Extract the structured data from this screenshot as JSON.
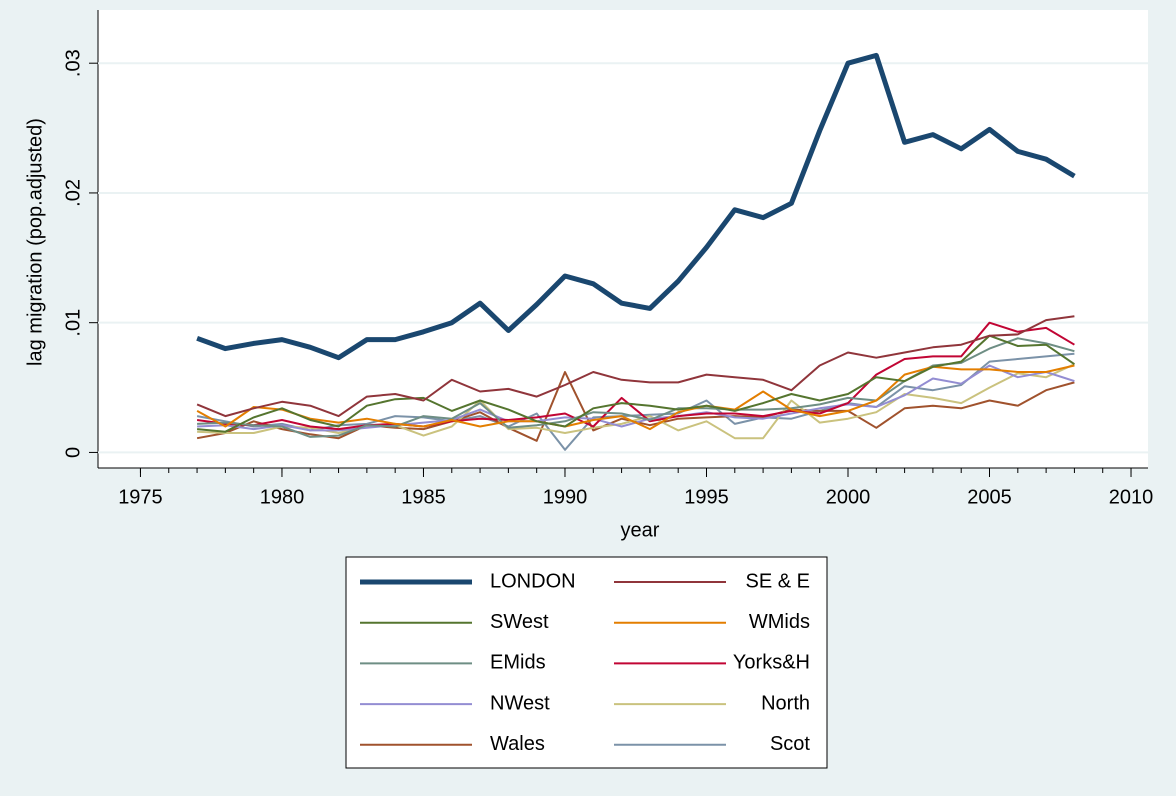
{
  "chart_data": {
    "type": "line",
    "xlabel": "year",
    "ylabel": "lag migration (pop.adjusted)",
    "x": [
      1977,
      1978,
      1979,
      1980,
      1981,
      1982,
      1983,
      1984,
      1985,
      1986,
      1987,
      1988,
      1989,
      1990,
      1991,
      1992,
      1993,
      1994,
      1995,
      1996,
      1997,
      1998,
      1999,
      2000,
      2001,
      2002,
      2003,
      2004,
      2005,
      2006,
      2007,
      2008
    ],
    "xlim": [
      1973.5,
      2010.6
    ],
    "xticks": [
      1975,
      1980,
      1985,
      1990,
      1995,
      2000,
      2005,
      2010
    ],
    "ylim": [
      -0.0012,
      0.0341
    ],
    "yticks": [
      0,
      {
        "value": 0.01,
        "label": ".01"
      },
      {
        "value": 0.02,
        "label": ".02"
      },
      {
        "value": 0.03,
        "label": ".03"
      }
    ],
    "grid": true,
    "series": [
      {
        "name": "LONDON",
        "color": "#1a476f",
        "values": [
          0.0088,
          0.008,
          0.0084,
          0.0087,
          0.0081,
          0.0073,
          0.0087,
          0.0087,
          0.0093,
          0.01,
          0.0115,
          0.0094,
          0.0114,
          0.0136,
          0.013,
          0.0115,
          0.0111,
          0.0132,
          0.0158,
          0.0187,
          0.0181,
          0.0192,
          0.0248,
          0.03,
          0.0306,
          0.0239,
          0.0245,
          0.0234,
          0.0249,
          0.0232,
          0.0226,
          0.0213
        ]
      },
      {
        "name": "SE & E",
        "color": "#90353b",
        "values": [
          0.0037,
          0.0028,
          0.0034,
          0.0039,
          0.0036,
          0.0028,
          0.0043,
          0.0045,
          0.004,
          0.0056,
          0.0047,
          0.0049,
          0.0043,
          0.0052,
          0.0062,
          0.0056,
          0.0054,
          0.0054,
          0.006,
          0.0058,
          0.0056,
          0.0048,
          0.0067,
          0.0077,
          0.0073,
          0.0077,
          0.0081,
          0.0083,
          0.009,
          0.0091,
          0.0102,
          0.0105
        ]
      },
      {
        "name": "SWest",
        "color": "#55752f",
        "values": [
          0.0018,
          0.0016,
          0.0027,
          0.0034,
          0.0025,
          0.002,
          0.0036,
          0.0041,
          0.0042,
          0.0032,
          0.004,
          0.0033,
          0.0024,
          0.002,
          0.0034,
          0.0038,
          0.0036,
          0.0033,
          0.0036,
          0.0032,
          0.0038,
          0.0045,
          0.004,
          0.0045,
          0.0058,
          0.0055,
          0.0066,
          0.007,
          0.009,
          0.0082,
          0.0083,
          0.0068
        ]
      },
      {
        "name": "WMids",
        "color": "#e37e00",
        "values": [
          0.0032,
          0.002,
          0.0035,
          0.0033,
          0.0026,
          0.0023,
          0.0026,
          0.0022,
          0.002,
          0.0025,
          0.002,
          0.0024,
          0.0024,
          0.002,
          0.0025,
          0.0028,
          0.0018,
          0.0031,
          0.0036,
          0.0033,
          0.0047,
          0.0033,
          0.0028,
          0.0032,
          0.004,
          0.006,
          0.0066,
          0.0064,
          0.0064,
          0.0062,
          0.0062,
          0.0067
        ]
      },
      {
        "name": "EMids",
        "color": "#6e8e84",
        "values": [
          0.0022,
          0.0023,
          0.0021,
          0.002,
          0.0012,
          0.0013,
          0.0021,
          0.002,
          0.0028,
          0.0026,
          0.0038,
          0.0019,
          0.0021,
          0.0024,
          0.0031,
          0.003,
          0.0025,
          0.0034,
          0.0034,
          0.0033,
          0.0033,
          0.0034,
          0.0037,
          0.0042,
          0.004,
          0.0055,
          0.0067,
          0.0069,
          0.008,
          0.0088,
          0.0084,
          0.0078
        ]
      },
      {
        "name": "Yorks&H",
        "color": "#c10534",
        "values": [
          0.0025,
          0.0022,
          0.0021,
          0.0025,
          0.002,
          0.0018,
          0.0021,
          0.0022,
          0.002,
          0.0024,
          0.0026,
          0.0025,
          0.0027,
          0.003,
          0.002,
          0.0042,
          0.0024,
          0.0028,
          0.003,
          0.003,
          0.0028,
          0.0032,
          0.003,
          0.0038,
          0.006,
          0.0072,
          0.0074,
          0.0074,
          0.01,
          0.0093,
          0.0096,
          0.0083
        ]
      },
      {
        "name": "NWest",
        "color": "#938dd2",
        "values": [
          0.002,
          0.0021,
          0.0018,
          0.0021,
          0.0017,
          0.0017,
          0.0019,
          0.0021,
          0.0023,
          0.0025,
          0.0033,
          0.0024,
          0.0024,
          0.0027,
          0.0026,
          0.002,
          0.0026,
          0.0028,
          0.0031,
          0.0027,
          0.0026,
          0.003,
          0.0034,
          0.0037,
          0.0035,
          0.0044,
          0.0057,
          0.0053,
          0.0067,
          0.0058,
          0.0062,
          0.0055
        ]
      },
      {
        "name": "North",
        "color": "#cac27e",
        "values": [
          0.0016,
          0.0015,
          0.0015,
          0.002,
          0.0019,
          0.0015,
          0.002,
          0.0021,
          0.0013,
          0.002,
          0.004,
          0.0018,
          0.0019,
          0.0015,
          0.0019,
          0.0022,
          0.0028,
          0.0017,
          0.0024,
          0.0011,
          0.0011,
          0.004,
          0.0023,
          0.0026,
          0.0031,
          0.0045,
          0.0042,
          0.0038,
          0.005,
          0.0061,
          0.0058,
          0.0068
        ]
      },
      {
        "name": "Wales",
        "color": "#a0522d",
        "values": [
          0.0011,
          0.0015,
          0.0024,
          0.0018,
          0.0014,
          0.0011,
          0.0021,
          0.0019,
          0.0018,
          0.0024,
          0.0031,
          0.0019,
          0.0009,
          0.0062,
          0.0017,
          0.0026,
          0.0021,
          0.0026,
          0.0027,
          0.0028,
          0.0027,
          0.0033,
          0.0032,
          0.0032,
          0.0019,
          0.0034,
          0.0036,
          0.0034,
          0.004,
          0.0036,
          0.0048,
          0.0054
        ]
      },
      {
        "name": "Scot",
        "color": "#7b92a8",
        "values": [
          0.0028,
          0.0024,
          0.002,
          0.0022,
          0.0017,
          0.0021,
          0.0022,
          0.0028,
          0.0027,
          0.0024,
          0.0028,
          0.002,
          0.003,
          0.0002,
          0.0027,
          0.0028,
          0.0029,
          0.003,
          0.004,
          0.0022,
          0.0027,
          0.0026,
          0.0032,
          0.0038,
          0.0035,
          0.0051,
          0.0048,
          0.0052,
          0.007,
          0.0072,
          0.0074,
          0.0076
        ]
      }
    ]
  }
}
